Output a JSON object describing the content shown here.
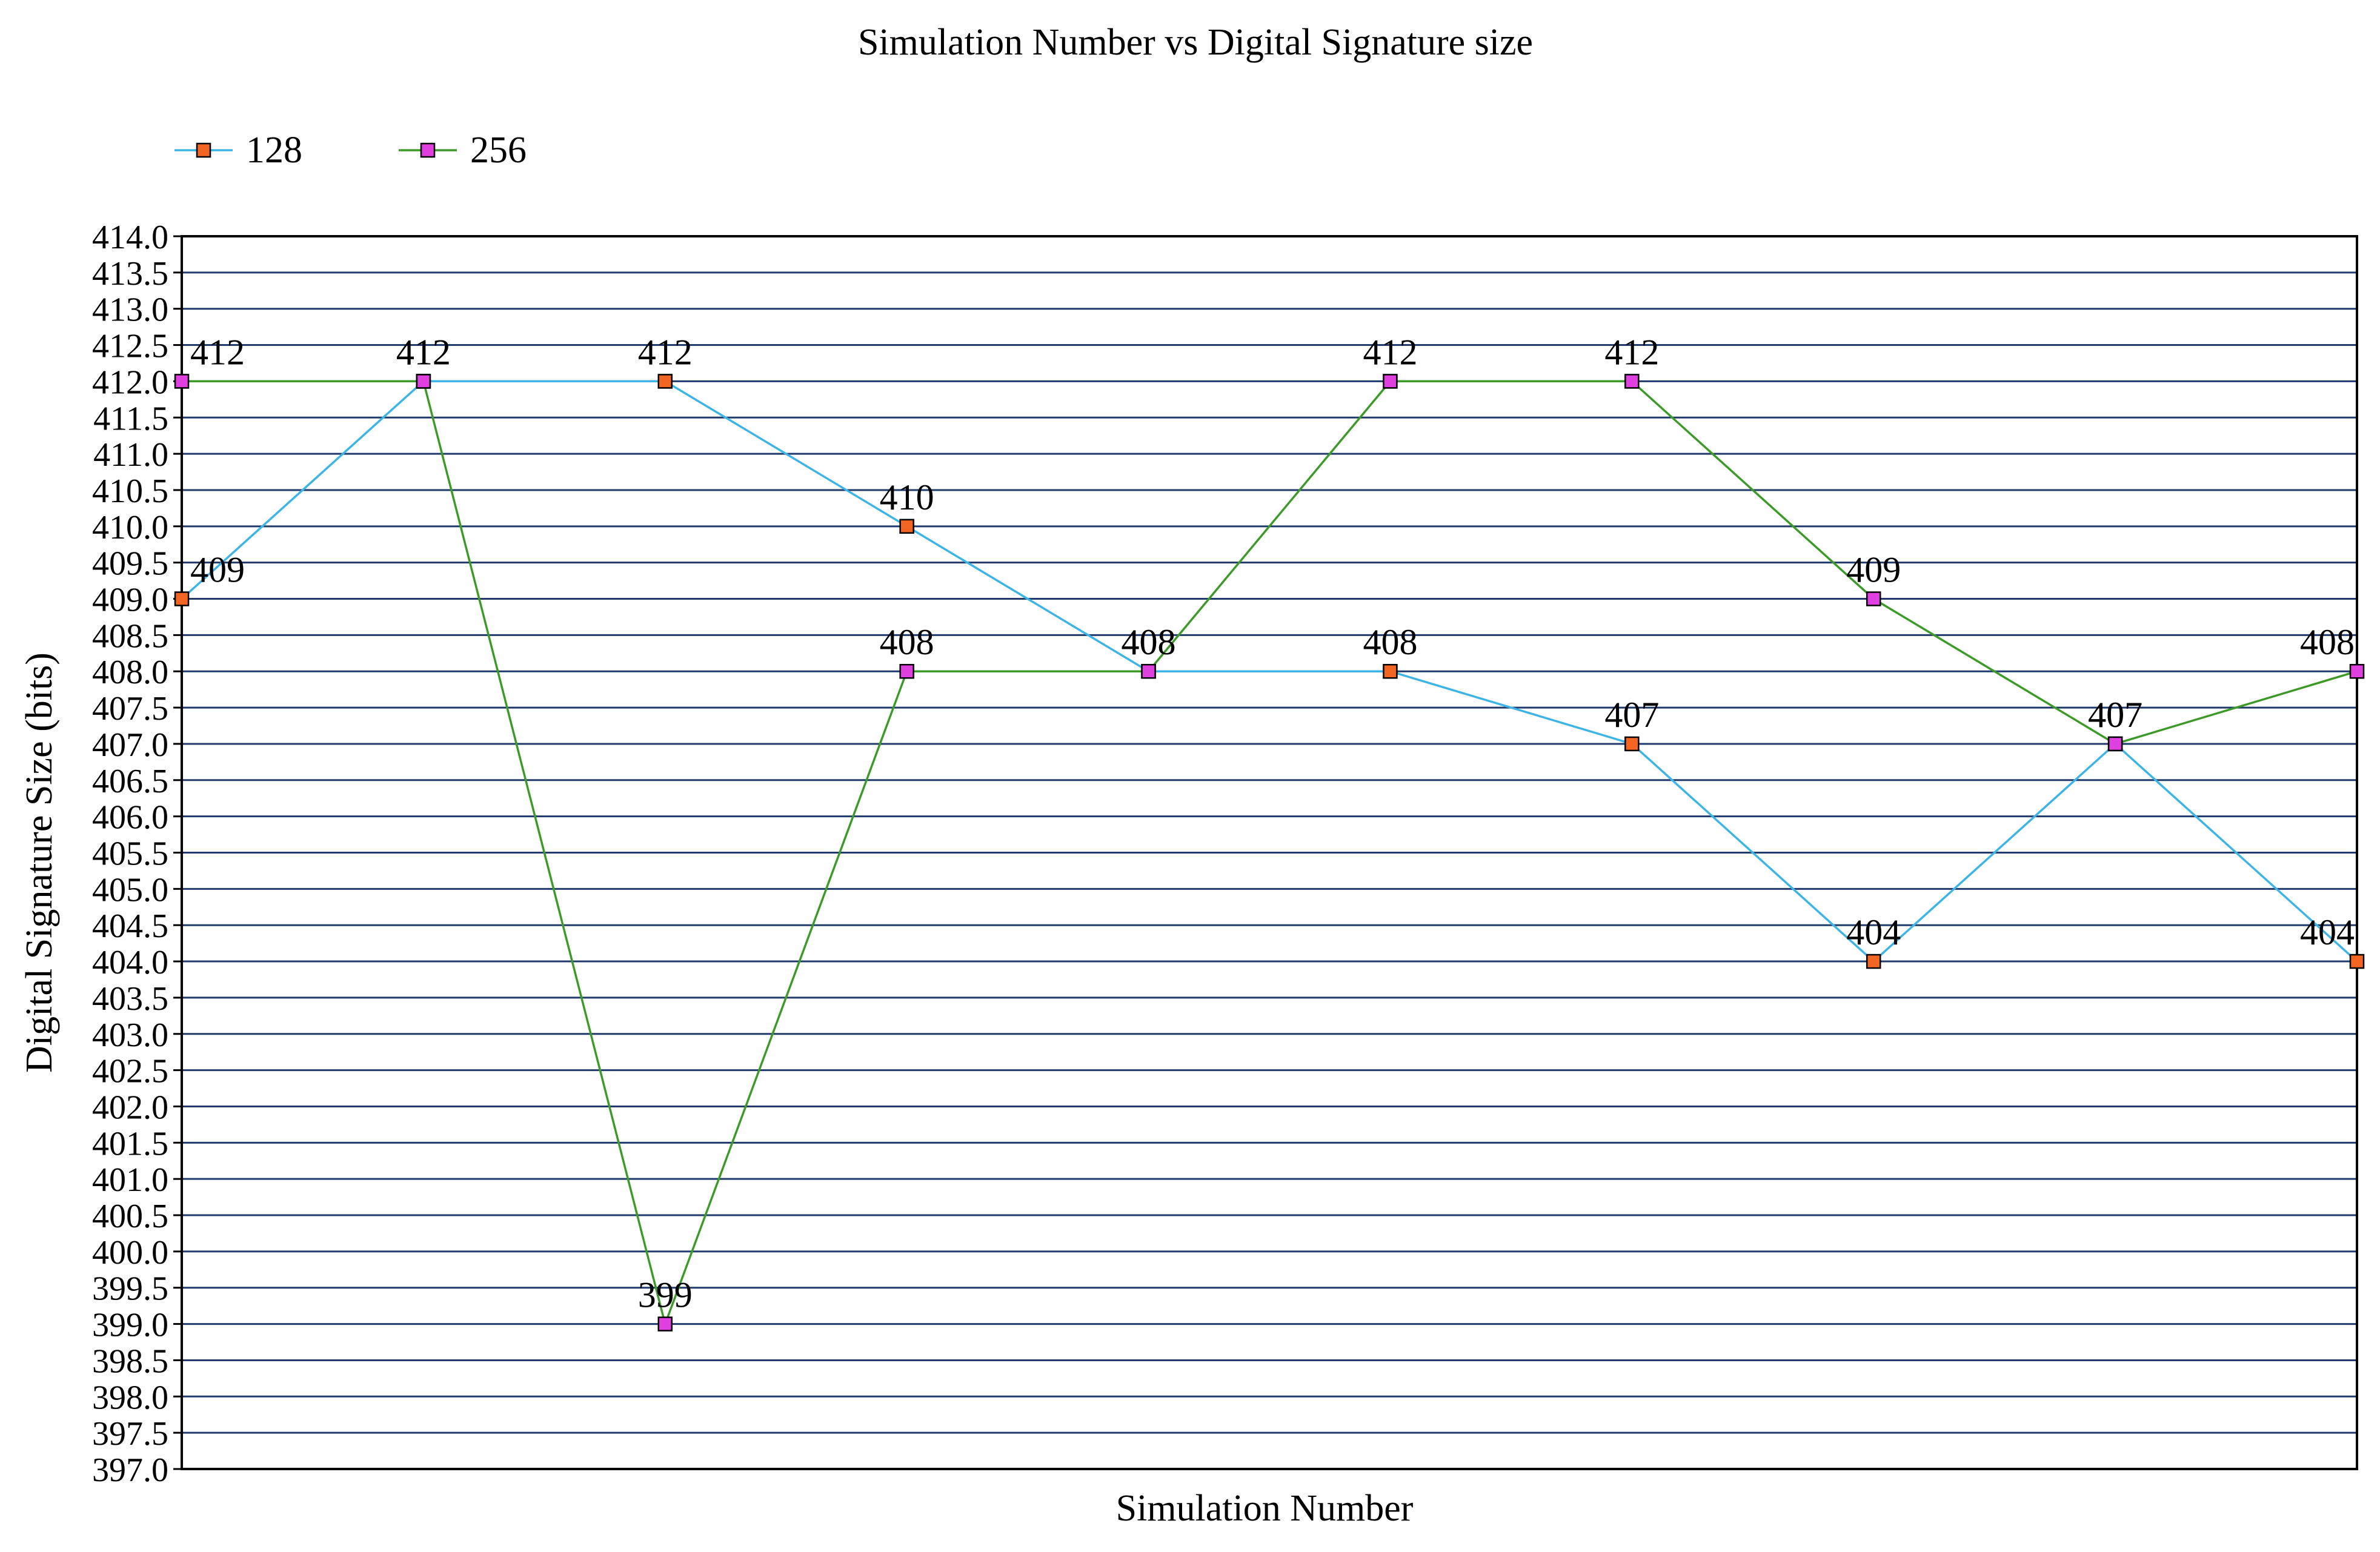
{
  "chart_data": {
    "type": "line",
    "title": "Simulation Number vs Digital Signature size",
    "xlabel": "Simulation Number",
    "ylabel": "Digital Signature Size (bits)",
    "ylim": [
      397.0,
      414.0
    ],
    "ytick_step": 0.5,
    "ytick_labels": [
      "397.0",
      "397.5",
      "398.0",
      "398.5",
      "399.0",
      "399.5",
      "400.0",
      "400.5",
      "401.0",
      "401.5",
      "402.0",
      "402.5",
      "403.0",
      "403.5",
      "404.0",
      "404.5",
      "405.0",
      "405.5",
      "406.0",
      "406.5",
      "407.0",
      "407.5",
      "408.0",
      "408.5",
      "409.0",
      "409.5",
      "410.0",
      "410.5",
      "411.0",
      "411.5",
      "412.0",
      "412.5",
      "413.0",
      "413.5",
      "414.0"
    ],
    "grid": true,
    "legend_position": "top-left",
    "x": [
      1,
      2,
      3,
      4,
      5,
      6,
      7,
      8,
      9,
      10
    ],
    "series": [
      {
        "name": "128",
        "line_color": "#3cb4e6",
        "marker_color": "#f26522",
        "values": [
          409,
          412,
          412,
          410,
          408,
          408,
          407,
          404,
          407,
          404
        ],
        "labels": [
          "409",
          "412",
          "412",
          "410",
          "408",
          "408",
          "407",
          "404",
          "407",
          "404"
        ]
      },
      {
        "name": "256",
        "line_color": "#3c9a28",
        "marker_color": "#e040e0",
        "values": [
          412,
          412,
          399,
          408,
          408,
          412,
          412,
          409,
          407,
          408
        ],
        "labels": [
          "412",
          "412",
          "399",
          "408",
          "408",
          "412",
          "412",
          "409",
          "407",
          "408"
        ]
      }
    ]
  }
}
